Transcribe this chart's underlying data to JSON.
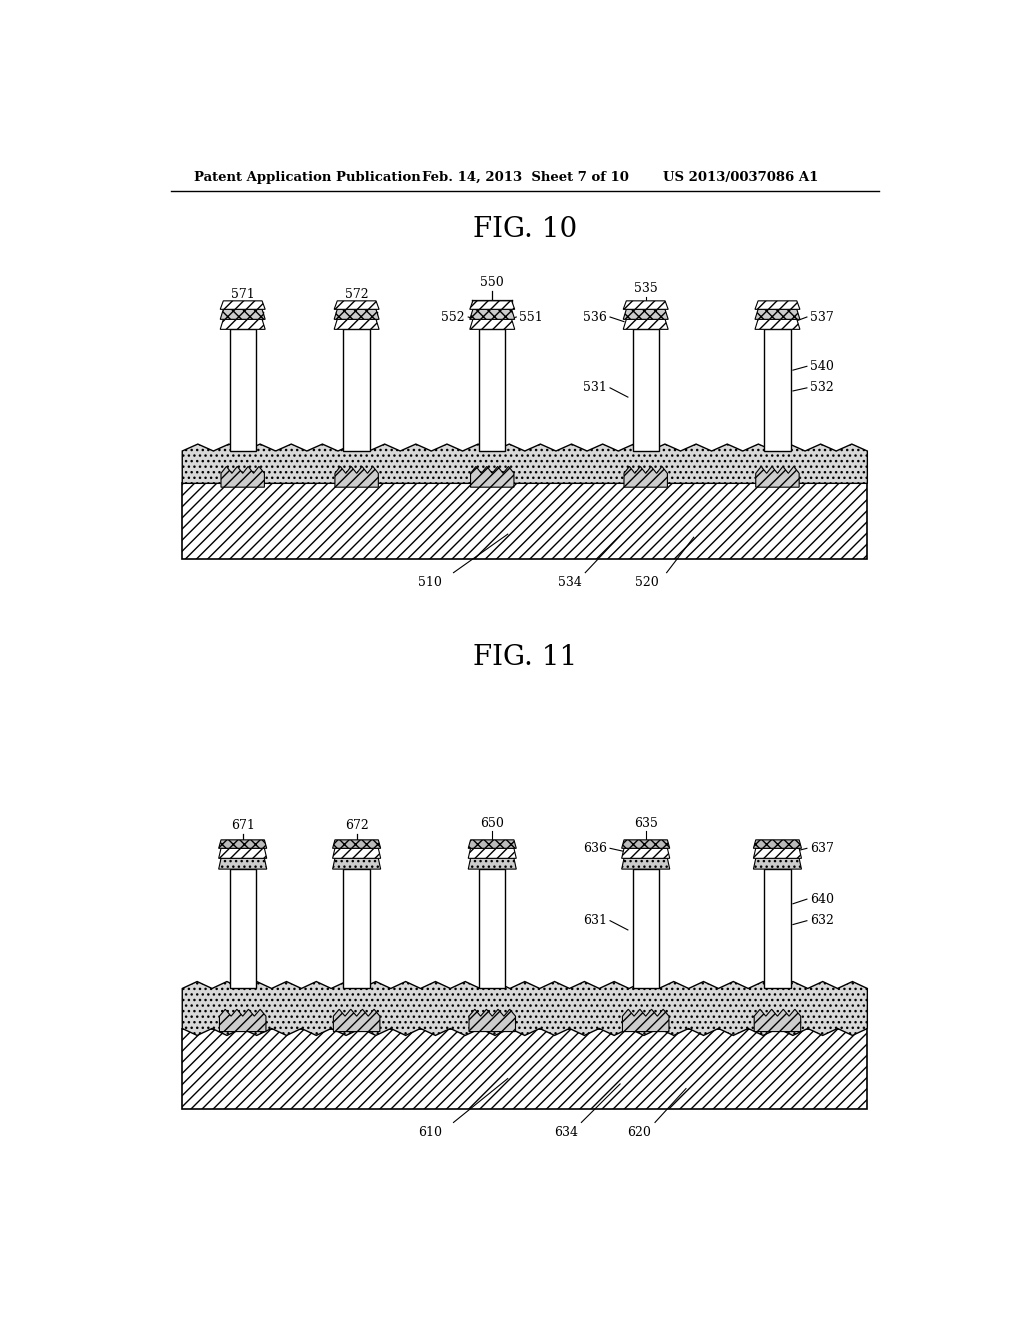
{
  "background_color": "#ffffff",
  "header_text": "Patent Application Publication",
  "header_date": "Feb. 14, 2013  Sheet 7 of 10",
  "header_patent": "US 2013/0037086 A1",
  "fig10_title": "FIG. 10",
  "fig11_title": "FIG. 11",
  "text_color": "#000000",
  "line_color": "#000000"
}
